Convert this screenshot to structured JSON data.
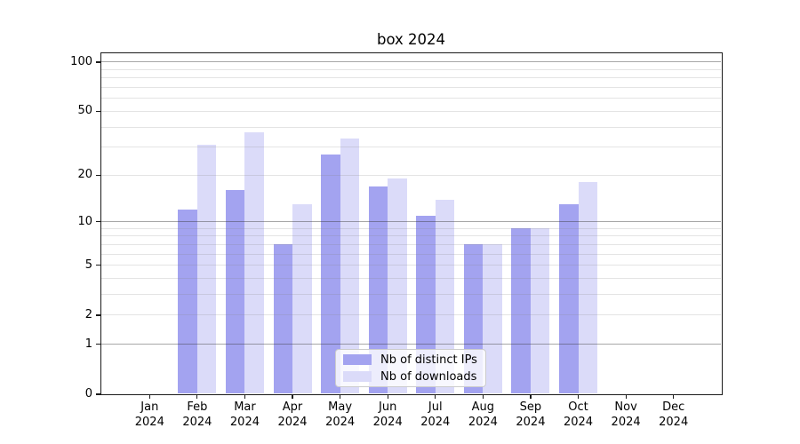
{
  "title": "box 2024",
  "chart_data": {
    "type": "bar",
    "title": "box 2024",
    "year": "2024",
    "categories": [
      "Jan",
      "Feb",
      "Mar",
      "Apr",
      "May",
      "Jun",
      "Jul",
      "Aug",
      "Sep",
      "Oct",
      "Nov",
      "Dec"
    ],
    "series": [
      {
        "name": "Nb of distinct IPs",
        "color": "#a3a3f0",
        "values": [
          0,
          12,
          16,
          7,
          27,
          17,
          11,
          7,
          9,
          13,
          0,
          0
        ]
      },
      {
        "name": "Nb of downloads",
        "color": "#dbdbf9",
        "values": [
          0,
          31,
          37,
          13,
          34,
          19,
          14,
          7,
          9,
          18,
          0,
          0
        ]
      }
    ],
    "yscale": "log10(1+x)",
    "ylim": [
      0,
      113
    ],
    "y_ticks": [
      100,
      50,
      20,
      10,
      5,
      2,
      1,
      0
    ],
    "y_major_gridlines": [
      100,
      10,
      1
    ],
    "y_minor_gridlines": [
      90,
      80,
      70,
      60,
      50,
      40,
      30,
      20,
      9,
      8,
      7,
      6,
      5,
      4,
      3,
      2
    ],
    "grid": true,
    "legend": {
      "position": "lower center",
      "entries": [
        "Nb of distinct IPs",
        "Nb of downloads"
      ]
    }
  },
  "colors": {
    "bar_distinct_ips": "#a3a3f0",
    "bar_downloads": "#dbdbf9",
    "grid_major": "#b0b0b0",
    "grid_minor": "#e4e4e4",
    "spine": "#1a1a1a",
    "legend_border": "#cccccc"
  }
}
